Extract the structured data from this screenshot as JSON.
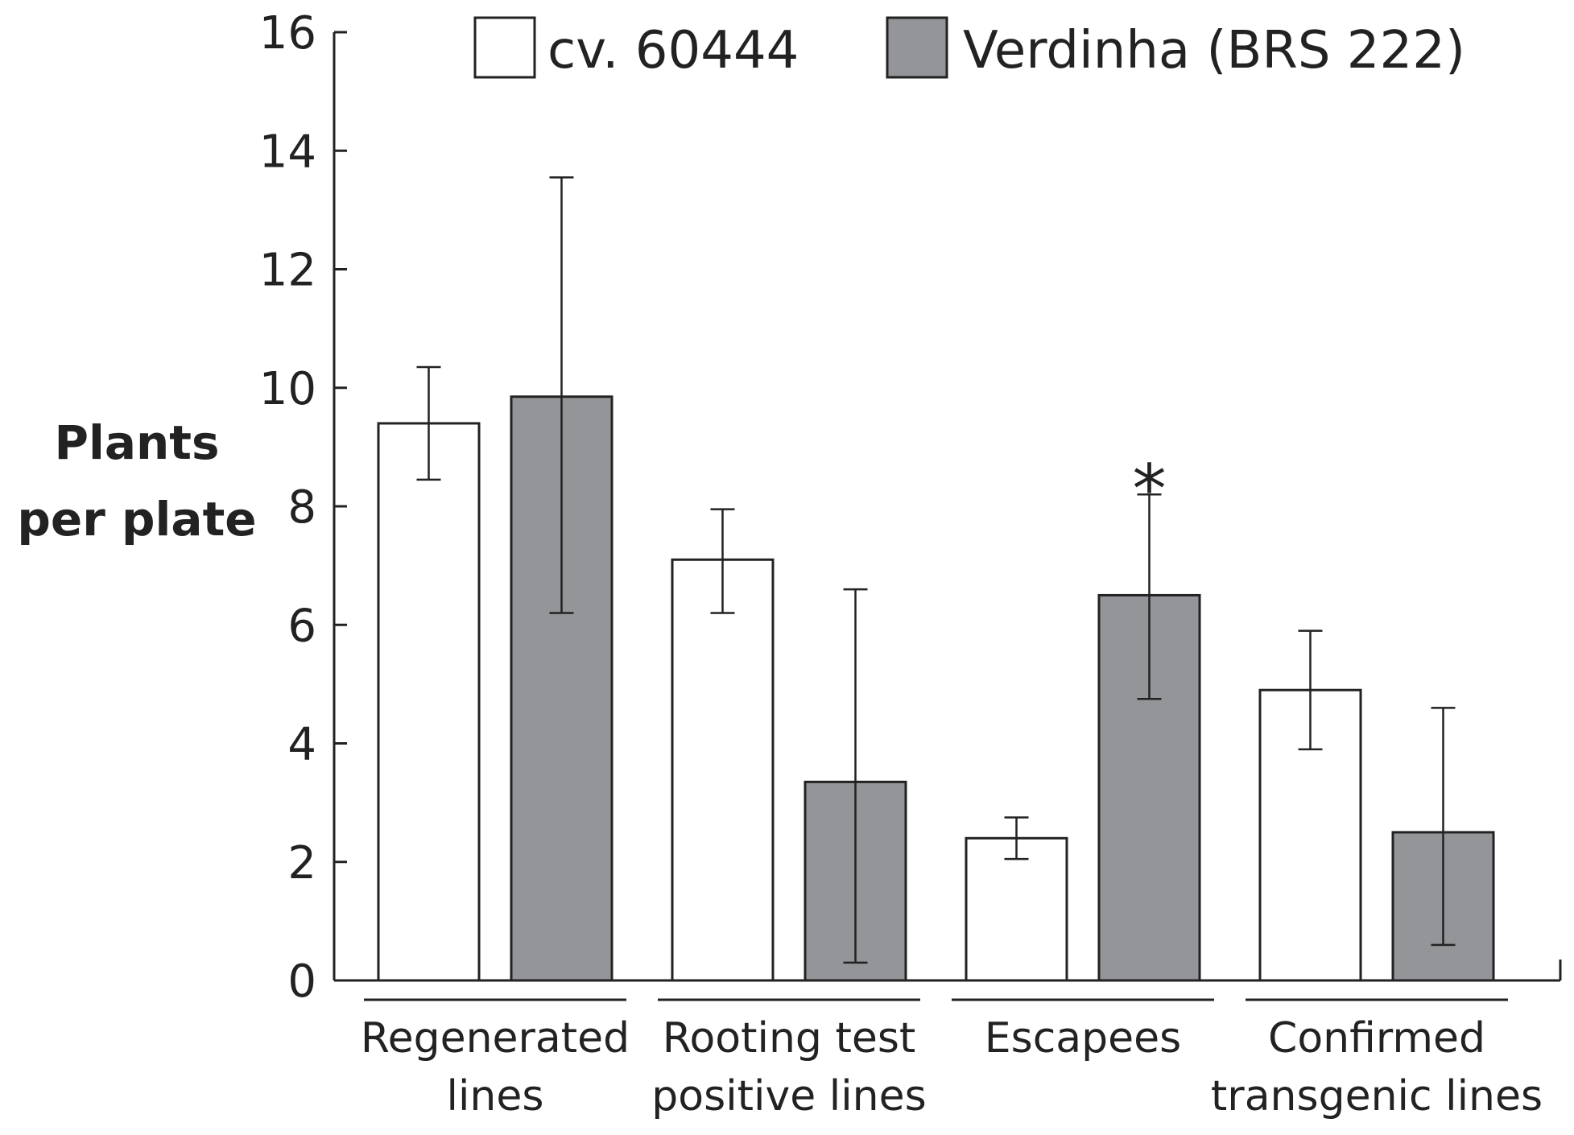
{
  "chart_data": {
    "type": "bar",
    "title": "",
    "xlabel": "",
    "ylabel_lines": [
      "Plants",
      "per plate"
    ],
    "ylim": [
      0,
      16
    ],
    "yticks": [
      0,
      2,
      4,
      6,
      8,
      10,
      12,
      14,
      16
    ],
    "categories": [
      [
        "Regenerated",
        "lines"
      ],
      [
        "Rooting test",
        "positive lines"
      ],
      [
        "Escapees"
      ],
      [
        "Confirmed",
        "transgenic lines"
      ]
    ],
    "series": [
      {
        "name": "cv. 60444",
        "color": "#ffffff",
        "values": [
          9.4,
          7.1,
          2.4,
          4.9
        ],
        "error_low": [
          8.45,
          6.2,
          2.05,
          3.9
        ],
        "error_high": [
          10.35,
          7.95,
          2.75,
          5.9
        ]
      },
      {
        "name": "Verdinha (BRS 222)",
        "color": "#939598",
        "values": [
          9.85,
          3.35,
          6.5,
          2.5
        ],
        "error_low": [
          6.2,
          0.3,
          4.75,
          0.6
        ],
        "error_high": [
          13.55,
          6.6,
          8.2,
          4.6
        ]
      }
    ],
    "annotations": [
      {
        "text": "*",
        "category_index": 2,
        "series_index": 1
      }
    ],
    "legend_position": "top"
  }
}
